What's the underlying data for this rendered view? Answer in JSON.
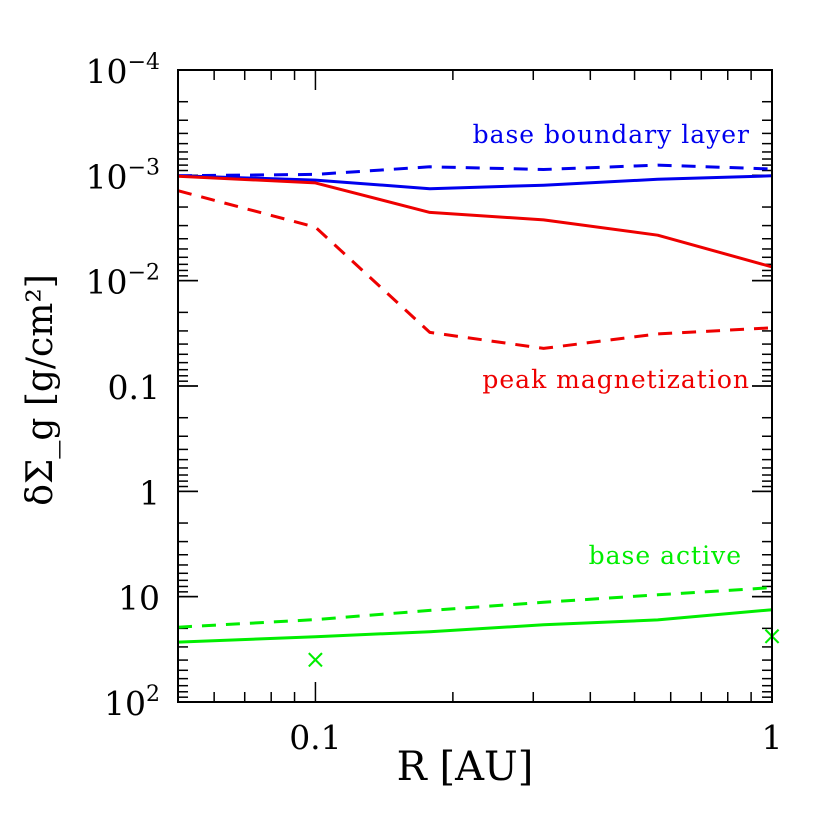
{
  "chart_data": {
    "type": "line",
    "xlabel": "R [AU]",
    "ylabel": "δΣ_g [g/cm²]",
    "x_scale": "log",
    "y_scale": "log",
    "y_inverted": true,
    "xlim": [
      0.05,
      1
    ],
    "ylim": [
      0.0001,
      100
    ],
    "x_tick_labels": [
      {
        "value": 0.1,
        "label": "0.1"
      },
      {
        "value": 1,
        "label": "1"
      }
    ],
    "y_tick_labels": [
      {
        "value": 0.0001,
        "label": "10",
        "sup": "−4"
      },
      {
        "value": 0.001,
        "label": "10",
        "sup": "−3"
      },
      {
        "value": 0.01,
        "label": "10",
        "sup": "−2"
      },
      {
        "value": 0.1,
        "label": "0.1",
        "sup": ""
      },
      {
        "value": 1,
        "label": "1",
        "sup": ""
      },
      {
        "value": 10,
        "label": "10",
        "sup": ""
      },
      {
        "value": 100,
        "label": "10",
        "sup": "2"
      }
    ],
    "series": [
      {
        "color": "#0000ee",
        "style": "dashed",
        "x": [
          0.05,
          0.1,
          0.178,
          0.316,
          0.562,
          1.0
        ],
        "y": [
          0.00101,
          0.00098,
          0.00083,
          0.00088,
          0.0008,
          0.00087
        ]
      },
      {
        "color": "#0000ee",
        "style": "solid",
        "x": [
          0.05,
          0.1,
          0.178,
          0.316,
          0.562,
          1.0
        ],
        "y": [
          0.00101,
          0.00111,
          0.00134,
          0.00124,
          0.00109,
          0.00101
        ]
      },
      {
        "color": "#ee0000",
        "style": "solid",
        "x": [
          0.05,
          0.1,
          0.178,
          0.316,
          0.562,
          1.0
        ],
        "y": [
          0.00102,
          0.00118,
          0.00225,
          0.00265,
          0.0037,
          0.0074
        ]
      },
      {
        "color": "#ee0000",
        "style": "dashed",
        "x": [
          0.05,
          0.1,
          0.178,
          0.316,
          0.562,
          1.0
        ],
        "y": [
          0.0014,
          0.0031,
          0.031,
          0.044,
          0.032,
          0.028
        ]
      },
      {
        "color": "#00ee00",
        "style": "dashed",
        "x": [
          0.05,
          0.1,
          0.178,
          0.316,
          0.562,
          1.0
        ],
        "y": [
          19.5,
          16.5,
          13.5,
          11.3,
          9.6,
          8.2
        ]
      },
      {
        "color": "#00ee00",
        "style": "solid",
        "x": [
          0.05,
          0.1,
          0.178,
          0.316,
          0.562,
          1.0
        ],
        "y": [
          27.0,
          24.0,
          21.5,
          18.5,
          16.6,
          13.3
        ]
      }
    ],
    "markers": [
      {
        "x": 0.1,
        "y": 40,
        "symbol": "×",
        "color": "#00ee00"
      },
      {
        "x": 1.0,
        "y": 24,
        "symbol": "×",
        "color": "#00ee00"
      }
    ],
    "annotations": [
      {
        "text": "base boundary layer",
        "color": "#0000ee"
      },
      {
        "text": "peak magnetization",
        "color": "#ee0000"
      },
      {
        "text": "base active",
        "color": "#00ee00"
      }
    ]
  }
}
